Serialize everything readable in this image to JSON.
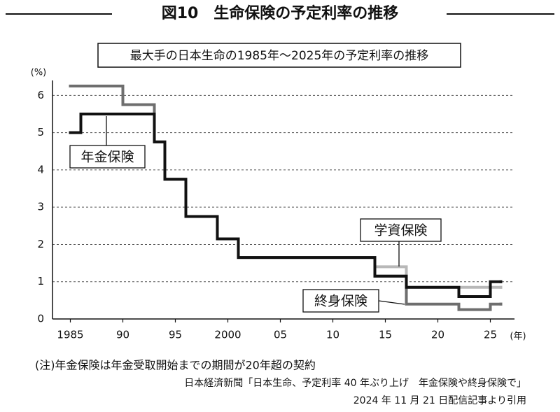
{
  "header": {
    "title": "図10　生命保険の予定利率の推移"
  },
  "chart_data": {
    "type": "step",
    "title": "最大手の日本生命の1985年～2025年の予定利率の推移",
    "y_label": "(%)",
    "x_label": "(年)",
    "xlim": [
      1983.3,
      2027.3
    ],
    "ylim": [
      0,
      6.4
    ],
    "xticks": [
      1985,
      {
        "value": 1990,
        "label": "90"
      },
      {
        "value": 1995,
        "label": "95"
      },
      2000,
      {
        "value": 2005,
        "label": "05"
      },
      {
        "value": 2010,
        "label": "10"
      },
      {
        "value": 2015,
        "label": "15"
      },
      {
        "value": 2020,
        "label": "20"
      },
      {
        "value": 2025,
        "label": "25"
      }
    ],
    "yticks": [
      0,
      1,
      2,
      3,
      4,
      5,
      6
    ],
    "grid": true,
    "series": [
      {
        "name": "学資保険",
        "color": "#b8b8b8",
        "x": [
          1985,
          1986,
          1993,
          1994,
          1996,
          1999,
          2001,
          2014,
          2017,
          2026
        ],
        "values": [
          5,
          5.5,
          4.75,
          3.75,
          2.75,
          2.15,
          1.65,
          1.4,
          0.85,
          0.85
        ]
      },
      {
        "name": "終身保険",
        "color": "#6e6e6e",
        "x": [
          1985,
          1990,
          1993,
          1994,
          1996,
          1999,
          2001,
          2014,
          2017,
          2022,
          2025,
          2026
        ],
        "values": [
          6.25,
          5.75,
          4.75,
          3.75,
          2.75,
          2.15,
          1.65,
          1.15,
          0.4,
          0.25,
          0.4,
          0.4
        ]
      },
      {
        "name": "年金保険",
        "color": "#111111",
        "x": [
          1985,
          1986,
          1993,
          1994,
          1996,
          1999,
          2001,
          2014,
          2017,
          2022,
          2025,
          2026
        ],
        "values": [
          5,
          5.5,
          4.75,
          3.75,
          2.75,
          2.15,
          1.65,
          1.15,
          0.85,
          0.6,
          1.0,
          1.0
        ]
      }
    ]
  },
  "notes": [
    "(注)年金保険は年金受取開始までの期間が20年超の契約",
    "日本経済新聞「日本生命、予定利率 40 年ぶり上げ　年金保険や終身保険で」",
    "2024 年 11 月 21 日配信記事より引用"
  ]
}
